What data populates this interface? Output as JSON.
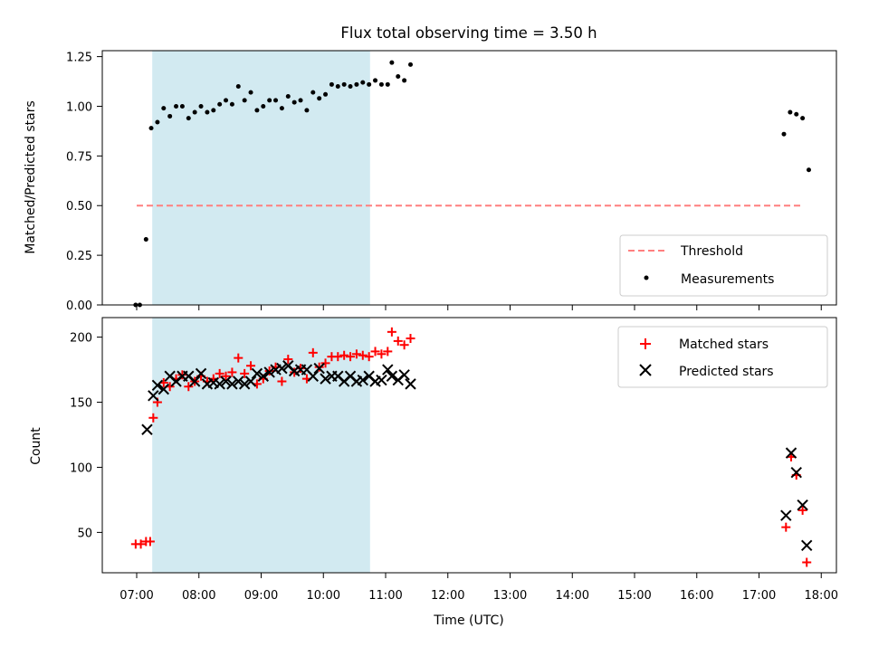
{
  "title": "Flux total observing time = 3.50 h",
  "chart_data": [
    {
      "type": "scatter",
      "ylabel": "Matched/Predicted stars",
      "ylim": [
        0,
        1.28
      ],
      "yticks": [
        "0.00",
        "0.25",
        "0.50",
        "0.75",
        "1.00",
        "1.25"
      ],
      "legend_position": "lower-right",
      "shaded_interval": [
        "07:15",
        "10:45"
      ],
      "colors": {
        "measurements": "#000000",
        "threshold": "#ff7f7f",
        "shade": "#add8e6"
      },
      "threshold": {
        "name": "Threshold",
        "y": 0.5,
        "x_range": [
          "07:00",
          "17:40"
        ]
      },
      "series": [
        {
          "name": "Measurements",
          "marker": "dot",
          "points": [
            [
              "06:59",
              0.0
            ],
            [
              "07:03",
              0.0
            ],
            [
              "07:09",
              0.33
            ],
            [
              "07:14",
              0.89
            ],
            [
              "07:20",
              0.92
            ],
            [
              "07:26",
              0.99
            ],
            [
              "07:32",
              0.95
            ],
            [
              "07:38",
              1.0
            ],
            [
              "07:44",
              1.0
            ],
            [
              "07:50",
              0.94
            ],
            [
              "07:56",
              0.97
            ],
            [
              "08:02",
              1.0
            ],
            [
              "08:08",
              0.97
            ],
            [
              "08:14",
              0.98
            ],
            [
              "08:20",
              1.01
            ],
            [
              "08:26",
              1.03
            ],
            [
              "08:32",
              1.01
            ],
            [
              "08:38",
              1.1
            ],
            [
              "08:44",
              1.03
            ],
            [
              "08:50",
              1.07
            ],
            [
              "08:56",
              0.98
            ],
            [
              "09:02",
              1.0
            ],
            [
              "09:08",
              1.03
            ],
            [
              "09:14",
              1.03
            ],
            [
              "09:20",
              0.99
            ],
            [
              "09:26",
              1.05
            ],
            [
              "09:32",
              1.02
            ],
            [
              "09:38",
              1.03
            ],
            [
              "09:44",
              0.98
            ],
            [
              "09:50",
              1.07
            ],
            [
              "09:56",
              1.04
            ],
            [
              "10:02",
              1.06
            ],
            [
              "10:08",
              1.11
            ],
            [
              "10:14",
              1.1
            ],
            [
              "10:20",
              1.11
            ],
            [
              "10:26",
              1.1
            ],
            [
              "10:32",
              1.11
            ],
            [
              "10:38",
              1.12
            ],
            [
              "10:44",
              1.11
            ],
            [
              "10:50",
              1.13
            ],
            [
              "10:56",
              1.11
            ],
            [
              "11:02",
              1.11
            ],
            [
              "11:06",
              1.22
            ],
            [
              "11:12",
              1.15
            ],
            [
              "11:18",
              1.13
            ],
            [
              "11:24",
              1.21
            ],
            [
              "17:24",
              0.86
            ],
            [
              "17:30",
              0.97
            ],
            [
              "17:36",
              0.96
            ],
            [
              "17:42",
              0.94
            ],
            [
              "17:48",
              0.68
            ]
          ]
        }
      ]
    },
    {
      "type": "scatter",
      "xlabel": "Time (UTC)",
      "ylabel": "Count",
      "ylim": [
        19,
        215
      ],
      "yticks": [
        "50",
        "100",
        "150",
        "200"
      ],
      "xticks": [
        "07:00",
        "08:00",
        "09:00",
        "10:00",
        "11:00",
        "12:00",
        "13:00",
        "14:00",
        "15:00",
        "16:00",
        "17:00",
        "18:00"
      ],
      "legend_position": "upper-right",
      "colors": {
        "matched": "#ff0000",
        "predicted": "#000000"
      },
      "series": [
        {
          "name": "Matched stars",
          "marker": "plus",
          "points": [
            [
              "06:59",
              41
            ],
            [
              "07:04",
              41
            ],
            [
              "07:09",
              43
            ],
            [
              "07:13",
              43
            ],
            [
              "07:16",
              138
            ],
            [
              "07:20",
              150
            ],
            [
              "07:26",
              165
            ],
            [
              "07:32",
              162
            ],
            [
              "07:38",
              168
            ],
            [
              "07:44",
              171
            ],
            [
              "07:50",
              162
            ],
            [
              "07:56",
              166
            ],
            [
              "08:02",
              170
            ],
            [
              "08:08",
              166
            ],
            [
              "08:14",
              168
            ],
            [
              "08:20",
              172
            ],
            [
              "08:26",
              170
            ],
            [
              "08:32",
              173
            ],
            [
              "08:38",
              184
            ],
            [
              "08:44",
              172
            ],
            [
              "08:50",
              178
            ],
            [
              "08:56",
              164
            ],
            [
              "09:02",
              168
            ],
            [
              "09:08",
              174
            ],
            [
              "09:14",
              177
            ],
            [
              "09:20",
              166
            ],
            [
              "09:26",
              183
            ],
            [
              "09:32",
              173
            ],
            [
              "09:38",
              176
            ],
            [
              "09:44",
              168
            ],
            [
              "09:50",
              188
            ],
            [
              "09:56",
              177
            ],
            [
              "10:02",
              180
            ],
            [
              "10:08",
              185
            ],
            [
              "10:14",
              185
            ],
            [
              "10:20",
              186
            ],
            [
              "10:26",
              185
            ],
            [
              "10:32",
              187
            ],
            [
              "10:38",
              186
            ],
            [
              "10:44",
              185
            ],
            [
              "10:50",
              189
            ],
            [
              "10:56",
              187
            ],
            [
              "11:02",
              189
            ],
            [
              "11:06",
              204
            ],
            [
              "11:12",
              197
            ],
            [
              "11:18",
              194
            ],
            [
              "11:24",
              199
            ],
            [
              "17:26",
              54
            ],
            [
              "17:31",
              108
            ],
            [
              "17:36",
              94
            ],
            [
              "17:42",
              67
            ],
            [
              "17:46",
              27
            ]
          ]
        },
        {
          "name": "Predicted stars",
          "marker": "x",
          "points": [
            [
              "07:10",
              129
            ],
            [
              "07:16",
              155
            ],
            [
              "07:20",
              163
            ],
            [
              "07:26",
              160
            ],
            [
              "07:32",
              170
            ],
            [
              "07:38",
              166
            ],
            [
              "07:44",
              170
            ],
            [
              "07:50",
              170
            ],
            [
              "07:56",
              166
            ],
            [
              "08:02",
              172
            ],
            [
              "08:08",
              164
            ],
            [
              "08:14",
              165
            ],
            [
              "08:20",
              164
            ],
            [
              "08:26",
              166
            ],
            [
              "08:32",
              164
            ],
            [
              "08:38",
              166
            ],
            [
              "08:44",
              164
            ],
            [
              "08:50",
              166
            ],
            [
              "08:56",
              172
            ],
            [
              "09:02",
              170
            ],
            [
              "09:08",
              173
            ],
            [
              "09:14",
              175
            ],
            [
              "09:20",
              176
            ],
            [
              "09:26",
              178
            ],
            [
              "09:32",
              174
            ],
            [
              "09:38",
              175
            ],
            [
              "09:44",
              175
            ],
            [
              "09:50",
              170
            ],
            [
              "09:56",
              176
            ],
            [
              "10:02",
              168
            ],
            [
              "10:08",
              170
            ],
            [
              "10:14",
              170
            ],
            [
              "10:20",
              166
            ],
            [
              "10:26",
              170
            ],
            [
              "10:32",
              166
            ],
            [
              "10:38",
              167
            ],
            [
              "10:44",
              170
            ],
            [
              "10:50",
              166
            ],
            [
              "10:56",
              167
            ],
            [
              "11:02",
              175
            ],
            [
              "11:06",
              170
            ],
            [
              "11:12",
              167
            ],
            [
              "11:18",
              171
            ],
            [
              "11:24",
              164
            ],
            [
              "17:26",
              63
            ],
            [
              "17:31",
              111
            ],
            [
              "17:36",
              96
            ],
            [
              "17:42",
              71
            ],
            [
              "17:46",
              40
            ]
          ]
        }
      ]
    }
  ]
}
